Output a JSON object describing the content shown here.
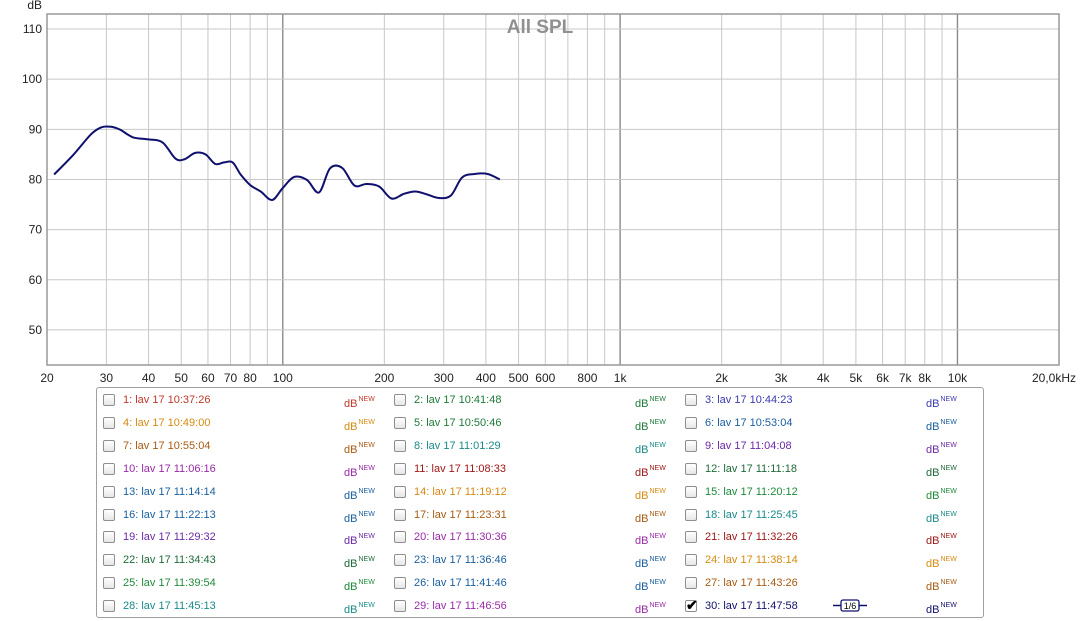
{
  "chart_data": {
    "type": "line",
    "title": "All SPL",
    "ylabel": "dB",
    "xscale": "log",
    "xlim": [
      20,
      20000
    ],
    "ylim": [
      43,
      113
    ],
    "y_ticks": [
      50,
      60,
      70,
      80,
      90,
      100,
      110
    ],
    "x_ticks": [
      {
        "v": 20,
        "label": "20"
      },
      {
        "v": 30,
        "label": "30"
      },
      {
        "v": 40,
        "label": "40"
      },
      {
        "v": 50,
        "label": "50"
      },
      {
        "v": 60,
        "label": "60"
      },
      {
        "v": 70,
        "label": "70"
      },
      {
        "v": 80,
        "label": "80"
      },
      {
        "v": 100,
        "label": "100"
      },
      {
        "v": 200,
        "label": "200"
      },
      {
        "v": 300,
        "label": "300"
      },
      {
        "v": 400,
        "label": "400"
      },
      {
        "v": 500,
        "label": "500"
      },
      {
        "v": 600,
        "label": "600"
      },
      {
        "v": 800,
        "label": "800"
      },
      {
        "v": 1000,
        "label": "1k"
      },
      {
        "v": 2000,
        "label": "2k"
      },
      {
        "v": 3000,
        "label": "3k"
      },
      {
        "v": 4000,
        "label": "4k"
      },
      {
        "v": 5000,
        "label": "5k"
      },
      {
        "v": 6000,
        "label": "6k"
      },
      {
        "v": 7000,
        "label": "7k"
      },
      {
        "v": 8000,
        "label": "8k"
      },
      {
        "v": 10000,
        "label": "10k"
      },
      {
        "v": 20000,
        "label": "20,0kHz"
      }
    ],
    "grid": true,
    "series": [
      {
        "color": "#10106e",
        "x": [
          21,
          24,
          27,
          29,
          31,
          33,
          36,
          40,
          44,
          48,
          51,
          55,
          59,
          63,
          67,
          71,
          75,
          80,
          86,
          93,
          100,
          108,
          118,
          128,
          138,
          150,
          163,
          177,
          193,
          210,
          228,
          247,
          268,
          290,
          315,
          340,
          370,
          405,
          440
        ],
        "y": [
          81,
          85,
          89,
          90.4,
          90.5,
          89.9,
          88.4,
          88,
          87.4,
          84.2,
          84,
          85.3,
          85,
          83.1,
          83.4,
          83.4,
          81,
          78.9,
          77.6,
          75.9,
          78.3,
          80.5,
          79.9,
          77.4,
          82.2,
          82.3,
          78.8,
          79.1,
          78.6,
          76.2,
          77.1,
          77.6,
          77,
          76.3,
          76.8,
          80.4,
          81.1,
          81.1,
          80
        ]
      }
    ]
  },
  "legend": {
    "db_label": "dB",
    "new_label": "NEW",
    "smooth_label": "1/6",
    "items": [
      {
        "text": "1: lav 17 10:37:26",
        "color": "#c0392b",
        "checked": false
      },
      {
        "text": "2: lav 17 10:41:48",
        "color": "#1e7b3a",
        "checked": false
      },
      {
        "text": "3: lav 17 10:44:23",
        "color": "#3a3ab0",
        "checked": false
      },
      {
        "text": "4: lav 17 10:49:00",
        "color": "#d68a10",
        "checked": false
      },
      {
        "text": "5: lav 17 10:50:46",
        "color": "#1e7b3a",
        "checked": false
      },
      {
        "text": "6: lav 17 10:53:04",
        "color": "#1a5fa0",
        "checked": false
      },
      {
        "text": "7: lav 17 10:55:04",
        "color": "#a85a10",
        "checked": false
      },
      {
        "text": "8: lav 17 11:01:29",
        "color": "#1a8a8a",
        "checked": false
      },
      {
        "text": "9: lav 17 11:04:08",
        "color": "#6a2aa8",
        "checked": false
      },
      {
        "text": "10: lav 17 11:06:16",
        "color": "#9a2aa8",
        "checked": false
      },
      {
        "text": "11: lav 17 11:08:33",
        "color": "#a01818",
        "checked": false
      },
      {
        "text": "12: lav 17 11:11:18",
        "color": "#1e6a3a",
        "checked": false
      },
      {
        "text": "13: lav 17 11:14:14",
        "color": "#1a5fa0",
        "checked": false
      },
      {
        "text": "14: lav 17 11:19:12",
        "color": "#d68a10",
        "checked": false
      },
      {
        "text": "15: lav 17 11:20:12",
        "color": "#1e8a3a",
        "checked": false
      },
      {
        "text": "16: lav 17 11:22:13",
        "color": "#1a5fa0",
        "checked": false
      },
      {
        "text": "17: lav 17 11:23:31",
        "color": "#a85a10",
        "checked": false
      },
      {
        "text": "18: lav 17 11:25:45",
        "color": "#1a8a8a",
        "checked": false
      },
      {
        "text": "19: lav 17 11:29:32",
        "color": "#6a2aa8",
        "checked": false
      },
      {
        "text": "20: lav 17 11:30:36",
        "color": "#9a2aa8",
        "checked": false
      },
      {
        "text": "21: lav 17 11:32:26",
        "color": "#a01818",
        "checked": false
      },
      {
        "text": "22: lav 17 11:34:43",
        "color": "#1e6a3a",
        "checked": false
      },
      {
        "text": "23: lav 17 11:36:46",
        "color": "#1a5fa0",
        "checked": false
      },
      {
        "text": "24: lav 17 11:38:14",
        "color": "#d68a10",
        "checked": false
      },
      {
        "text": "25: lav 17 11:39:54",
        "color": "#1e8a3a",
        "checked": false
      },
      {
        "text": "26: lav 17 11:41:46",
        "color": "#1a5fa0",
        "checked": false
      },
      {
        "text": "27: lav 17 11:43:26",
        "color": "#a85a10",
        "checked": false
      },
      {
        "text": "28: lav 17 11:45:13",
        "color": "#1a8a8a",
        "checked": false
      },
      {
        "text": "29: lav 17 11:46:56",
        "color": "#9a2aa8",
        "checked": false
      },
      {
        "text": "30: lav 17 11:47:58",
        "color": "#10106e",
        "checked": true,
        "smoothing": true
      }
    ]
  }
}
